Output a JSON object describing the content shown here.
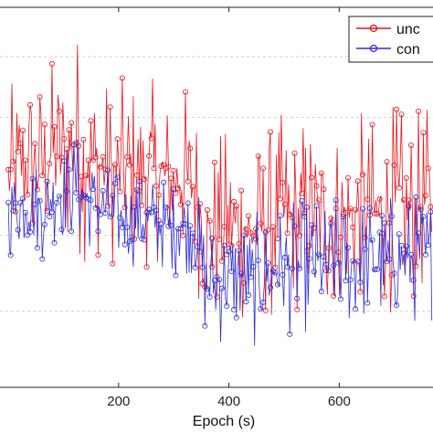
{
  "chart_data": {
    "type": "line",
    "title": "",
    "xlabel": "Epoch (s)",
    "ylabel": "",
    "xlim": [
      -15,
      770
    ],
    "ylim": [
      0,
      10
    ],
    "x_ticks": [
      200,
      400,
      600
    ],
    "x_tick_labels": [
      "200",
      "400",
      "600"
    ],
    "grid": "dashed horizontal",
    "legend_placement": "top-right",
    "colors": {
      "red": "#e8141e",
      "blue": "#2f2fd6"
    },
    "series": [
      {
        "name": "unc",
        "color": "#e8141e",
        "marker": "circle",
        "x": [
          0,
          20,
          40,
          60,
          80,
          100,
          120,
          140,
          160,
          180,
          200,
          220,
          240,
          260,
          280,
          300,
          320,
          340,
          360,
          380,
          400,
          420,
          440,
          460,
          480,
          500,
          520,
          540,
          560,
          580,
          600,
          620,
          640,
          660,
          680,
          700,
          720,
          740,
          760
        ],
        "y": [
          5.5,
          5.8,
          6.0,
          5.6,
          6.2,
          6.0,
          6.6,
          6.1,
          5.9,
          5.7,
          5.6,
          5.8,
          5.5,
          5.7,
          5.6,
          5.4,
          5.5,
          5.2,
          3.9,
          4.1,
          4.2,
          4.4,
          4.0,
          4.2,
          4.3,
          4.5,
          4.4,
          4.6,
          4.5,
          4.4,
          4.6,
          4.5,
          4.7,
          4.6,
          4.5,
          4.8,
          4.6,
          4.7,
          4.9
        ],
        "amplitude": [
          1.8,
          2.0,
          2.0,
          2.2,
          2.0,
          2.4,
          2.6,
          2.2,
          2.0,
          2.0,
          1.9,
          2.0,
          2.0,
          1.9,
          1.8,
          1.8,
          2.0,
          2.0,
          2.0,
          2.0,
          2.2,
          2.2,
          2.0,
          2.0,
          2.1,
          2.2,
          2.0,
          2.2,
          2.0,
          2.2,
          2.0,
          2.0,
          2.0,
          2.0,
          2.0,
          2.2,
          2.0,
          2.0,
          2.0
        ]
      },
      {
        "name": "con",
        "color": "#2f2fd6",
        "marker": "circle",
        "x": [
          0,
          20,
          40,
          60,
          80,
          100,
          120,
          140,
          160,
          180,
          200,
          220,
          240,
          260,
          280,
          300,
          320,
          340,
          360,
          380,
          400,
          420,
          440,
          460,
          480,
          500,
          520,
          540,
          560,
          580,
          600,
          620,
          640,
          660,
          680,
          700,
          720,
          740,
          760
        ],
        "y": [
          4.6,
          4.8,
          4.9,
          4.7,
          5.0,
          5.1,
          5.3,
          5.0,
          4.8,
          4.6,
          4.4,
          4.5,
          4.3,
          4.4,
          4.3,
          4.2,
          4.3,
          4.1,
          2.6,
          2.8,
          2.9,
          3.0,
          2.7,
          2.9,
          3.0,
          3.2,
          3.1,
          3.2,
          3.2,
          3.1,
          3.3,
          3.2,
          3.4,
          3.3,
          3.2,
          3.5,
          3.3,
          3.4,
          3.5
        ],
        "amplitude": [
          1.0,
          1.0,
          1.0,
          1.1,
          1.0,
          1.0,
          1.2,
          1.1,
          1.0,
          1.0,
          1.0,
          1.0,
          1.0,
          1.0,
          1.0,
          1.0,
          1.0,
          1.0,
          1.4,
          1.4,
          1.4,
          1.4,
          1.4,
          1.4,
          1.4,
          1.4,
          1.4,
          1.4,
          1.4,
          1.4,
          1.4,
          1.4,
          1.4,
          1.4,
          1.4,
          1.4,
          1.4,
          1.4,
          1.4
        ]
      }
    ],
    "horizontal_gridlines": [
      2,
      4,
      7.1,
      8.7
    ]
  }
}
